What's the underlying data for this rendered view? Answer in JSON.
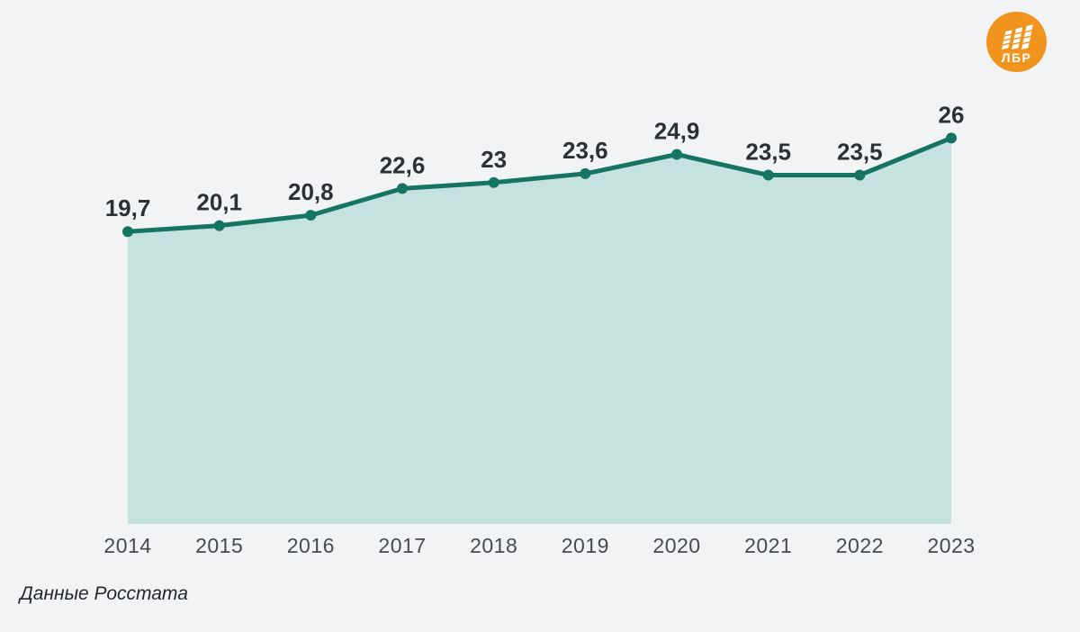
{
  "page": {
    "background": "#f1f3f5",
    "source_note": "Данные Росстата"
  },
  "logo": {
    "text": "ЛБР",
    "background_color": "#f0941e",
    "foreground_color": "#ffffff"
  },
  "chart_data": {
    "type": "area",
    "title": "",
    "xlabel": "",
    "ylabel": "",
    "categories": [
      "2014",
      "2015",
      "2016",
      "2017",
      "2018",
      "2019",
      "2020",
      "2021",
      "2022",
      "2023"
    ],
    "values": [
      19.7,
      20.1,
      20.8,
      22.6,
      23,
      23.6,
      24.9,
      23.5,
      23.5,
      26
    ],
    "value_labels": [
      "19,7",
      "20,1",
      "20,8",
      "22,6",
      "23",
      "23,6",
      "24,9",
      "23,5",
      "23,5",
      "26"
    ],
    "ylim": [
      0,
      35.3
    ],
    "grid": false,
    "legend": false,
    "line_color": "#157562",
    "point_color": "#157562",
    "fill_color": "#c6e2df",
    "value_label_color": "#2b3137",
    "axis_label_color": "#454b51"
  }
}
